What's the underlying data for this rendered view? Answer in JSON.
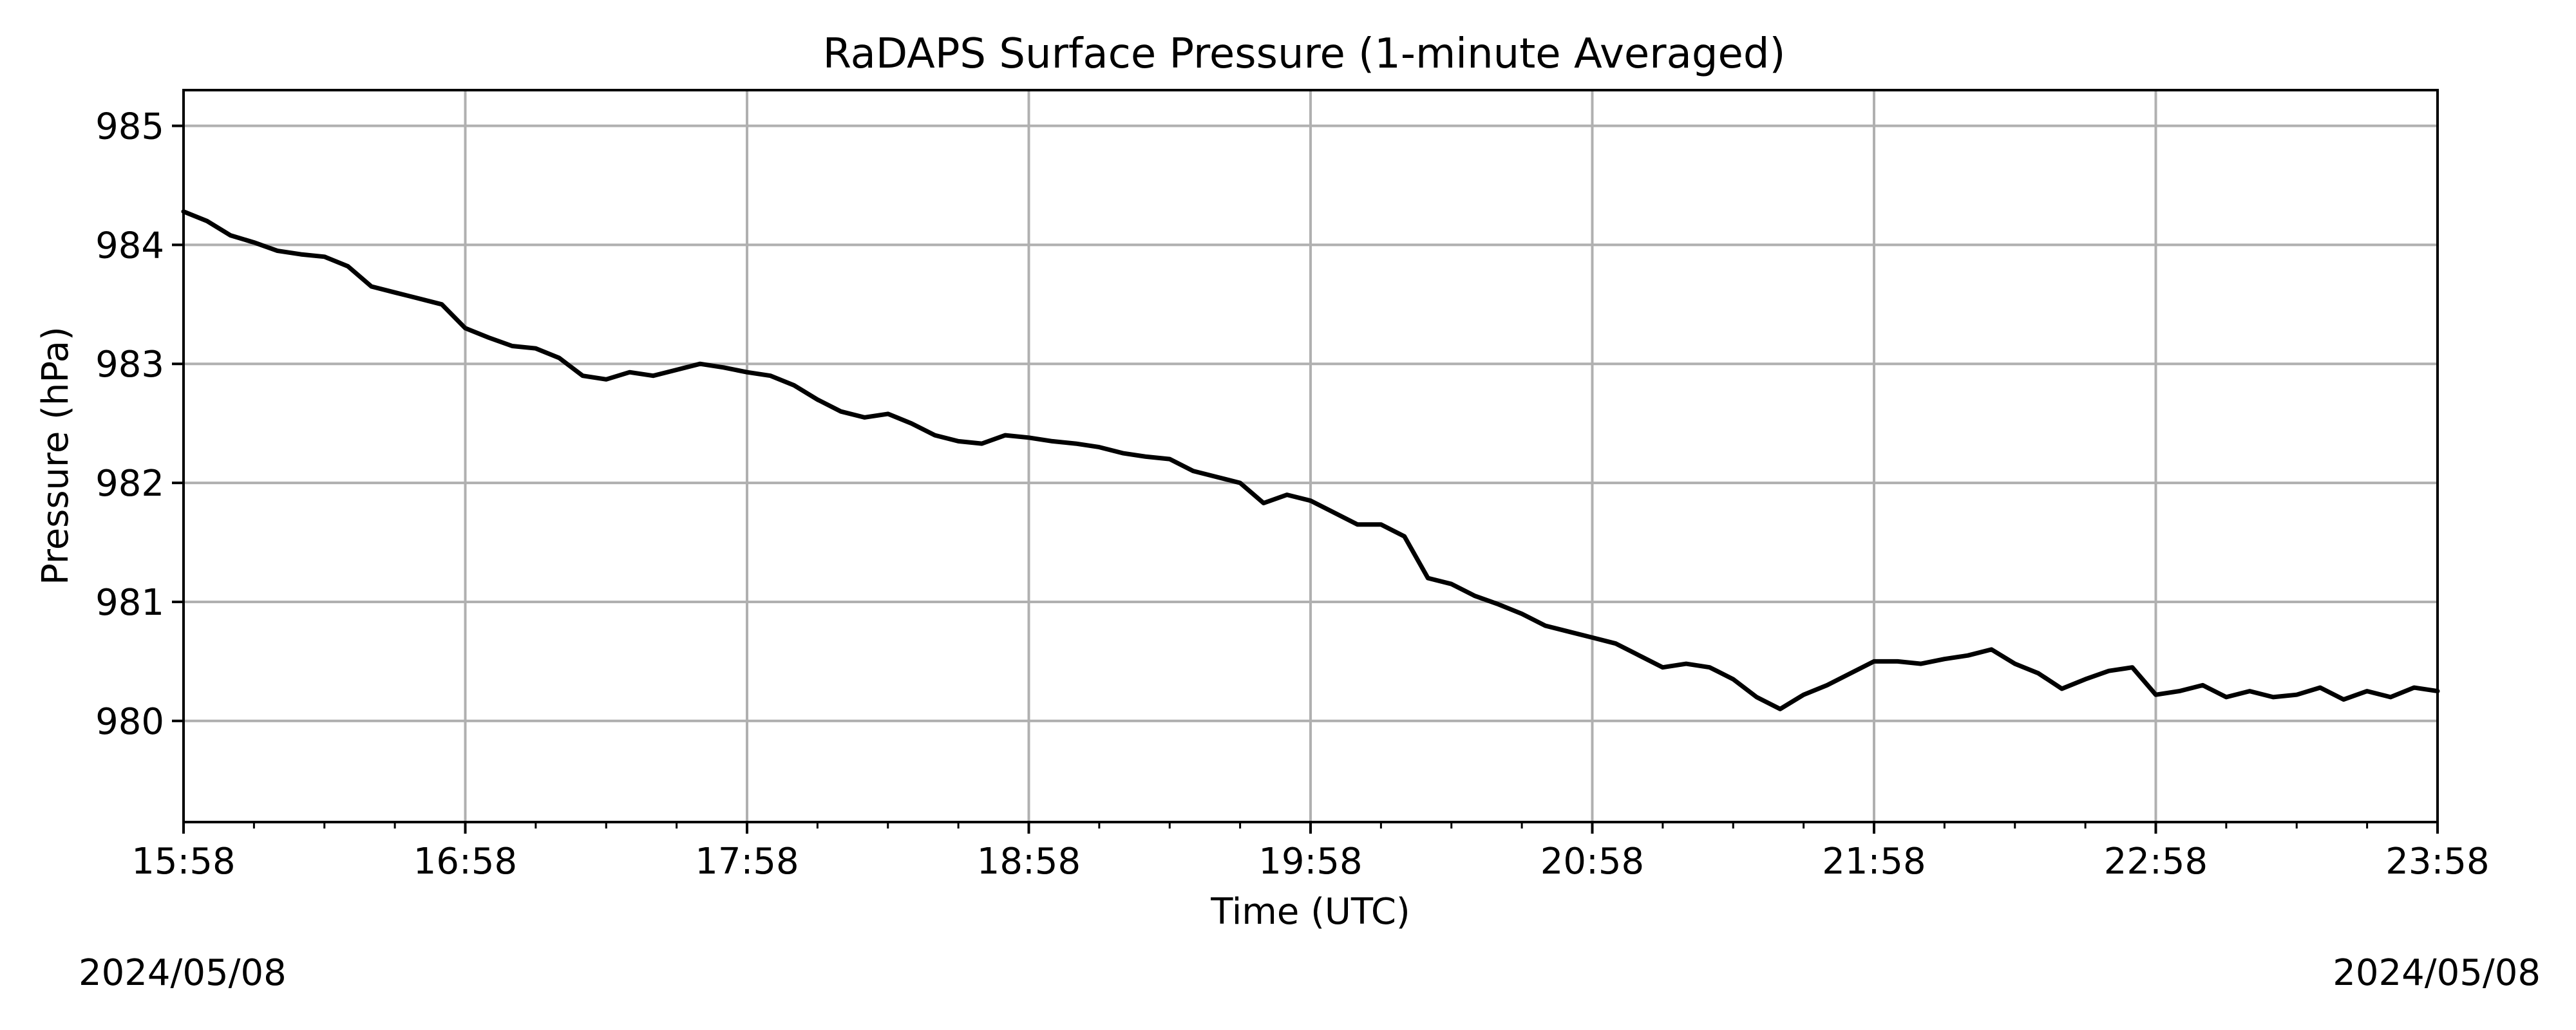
{
  "chart_data": {
    "type": "line",
    "title": "RaDAPS Surface Pressure (1-minute Averaged)",
    "xlabel": "Time (UTC)",
    "ylabel": "Pressure (hPa)",
    "x_tick_labels": [
      "15:58",
      "16:58",
      "17:58",
      "18:58",
      "19:58",
      "20:58",
      "21:58",
      "22:58",
      "23:58"
    ],
    "y_ticks": [
      980,
      981,
      982,
      983,
      984,
      985
    ],
    "ylim": [
      979.15,
      985.3
    ],
    "xlim": [
      "15:58",
      "23:58"
    ],
    "grid": true,
    "line_color": "#000000",
    "start_date": "2024/05/08",
    "end_date": "2024/05/08",
    "series": [
      {
        "x": [
          "15:58",
          "16:03",
          "16:08",
          "16:13",
          "16:18",
          "16:23",
          "16:28",
          "16:33",
          "16:38",
          "16:43",
          "16:48",
          "16:53",
          "16:58",
          "17:03",
          "17:08",
          "17:13",
          "17:18",
          "17:23",
          "17:28",
          "17:33",
          "17:38",
          "17:43",
          "17:48",
          "17:53",
          "17:58",
          "18:03",
          "18:08",
          "18:13",
          "18:18",
          "18:23",
          "18:28",
          "18:33",
          "18:38",
          "18:43",
          "18:48",
          "18:53",
          "18:58",
          "19:03",
          "19:08",
          "19:13",
          "19:18",
          "19:23",
          "19:28",
          "19:33",
          "19:38",
          "19:43",
          "19:48",
          "19:53",
          "19:58",
          "20:03",
          "20:08",
          "20:13",
          "20:18",
          "20:23",
          "20:28",
          "20:33",
          "20:38",
          "20:43",
          "20:48",
          "20:53",
          "20:58",
          "21:03",
          "21:08",
          "21:13",
          "21:18",
          "21:23",
          "21:28",
          "21:33",
          "21:38",
          "21:43",
          "21:48",
          "21:53",
          "21:58",
          "22:03",
          "22:08",
          "22:13",
          "22:18",
          "22:23",
          "22:28",
          "22:33",
          "22:38",
          "22:43",
          "22:48",
          "22:53",
          "22:58",
          "23:03",
          "23:08",
          "23:13",
          "23:18",
          "23:23",
          "23:28",
          "23:33",
          "23:38",
          "23:43",
          "23:48",
          "23:53",
          "23:58"
        ],
        "values": [
          984.28,
          984.2,
          984.08,
          984.02,
          983.95,
          983.92,
          983.9,
          983.82,
          983.65,
          983.6,
          983.55,
          983.5,
          983.3,
          983.22,
          983.15,
          983.13,
          983.05,
          982.9,
          982.87,
          982.93,
          982.9,
          982.95,
          983.0,
          982.97,
          982.93,
          982.9,
          982.82,
          982.7,
          982.6,
          982.55,
          982.58,
          982.5,
          982.4,
          982.35,
          982.33,
          982.4,
          982.38,
          982.35,
          982.33,
          982.3,
          982.25,
          982.22,
          982.2,
          982.1,
          982.05,
          982.0,
          981.83,
          981.9,
          981.85,
          981.75,
          981.65,
          981.65,
          981.55,
          981.2,
          981.15,
          981.05,
          980.98,
          980.9,
          980.8,
          980.75,
          980.7,
          980.65,
          980.55,
          980.45,
          980.48,
          980.45,
          980.35,
          980.2,
          980.1,
          980.22,
          980.3,
          980.4,
          980.5,
          980.5,
          980.48,
          980.52,
          980.55,
          980.6,
          980.48,
          980.4,
          980.27,
          980.35,
          980.42,
          980.45,
          980.22,
          980.25,
          980.3,
          980.2,
          980.25,
          980.2,
          980.22,
          980.28,
          980.18,
          980.25,
          980.2,
          980.28,
          980.25
        ]
      }
    ]
  }
}
